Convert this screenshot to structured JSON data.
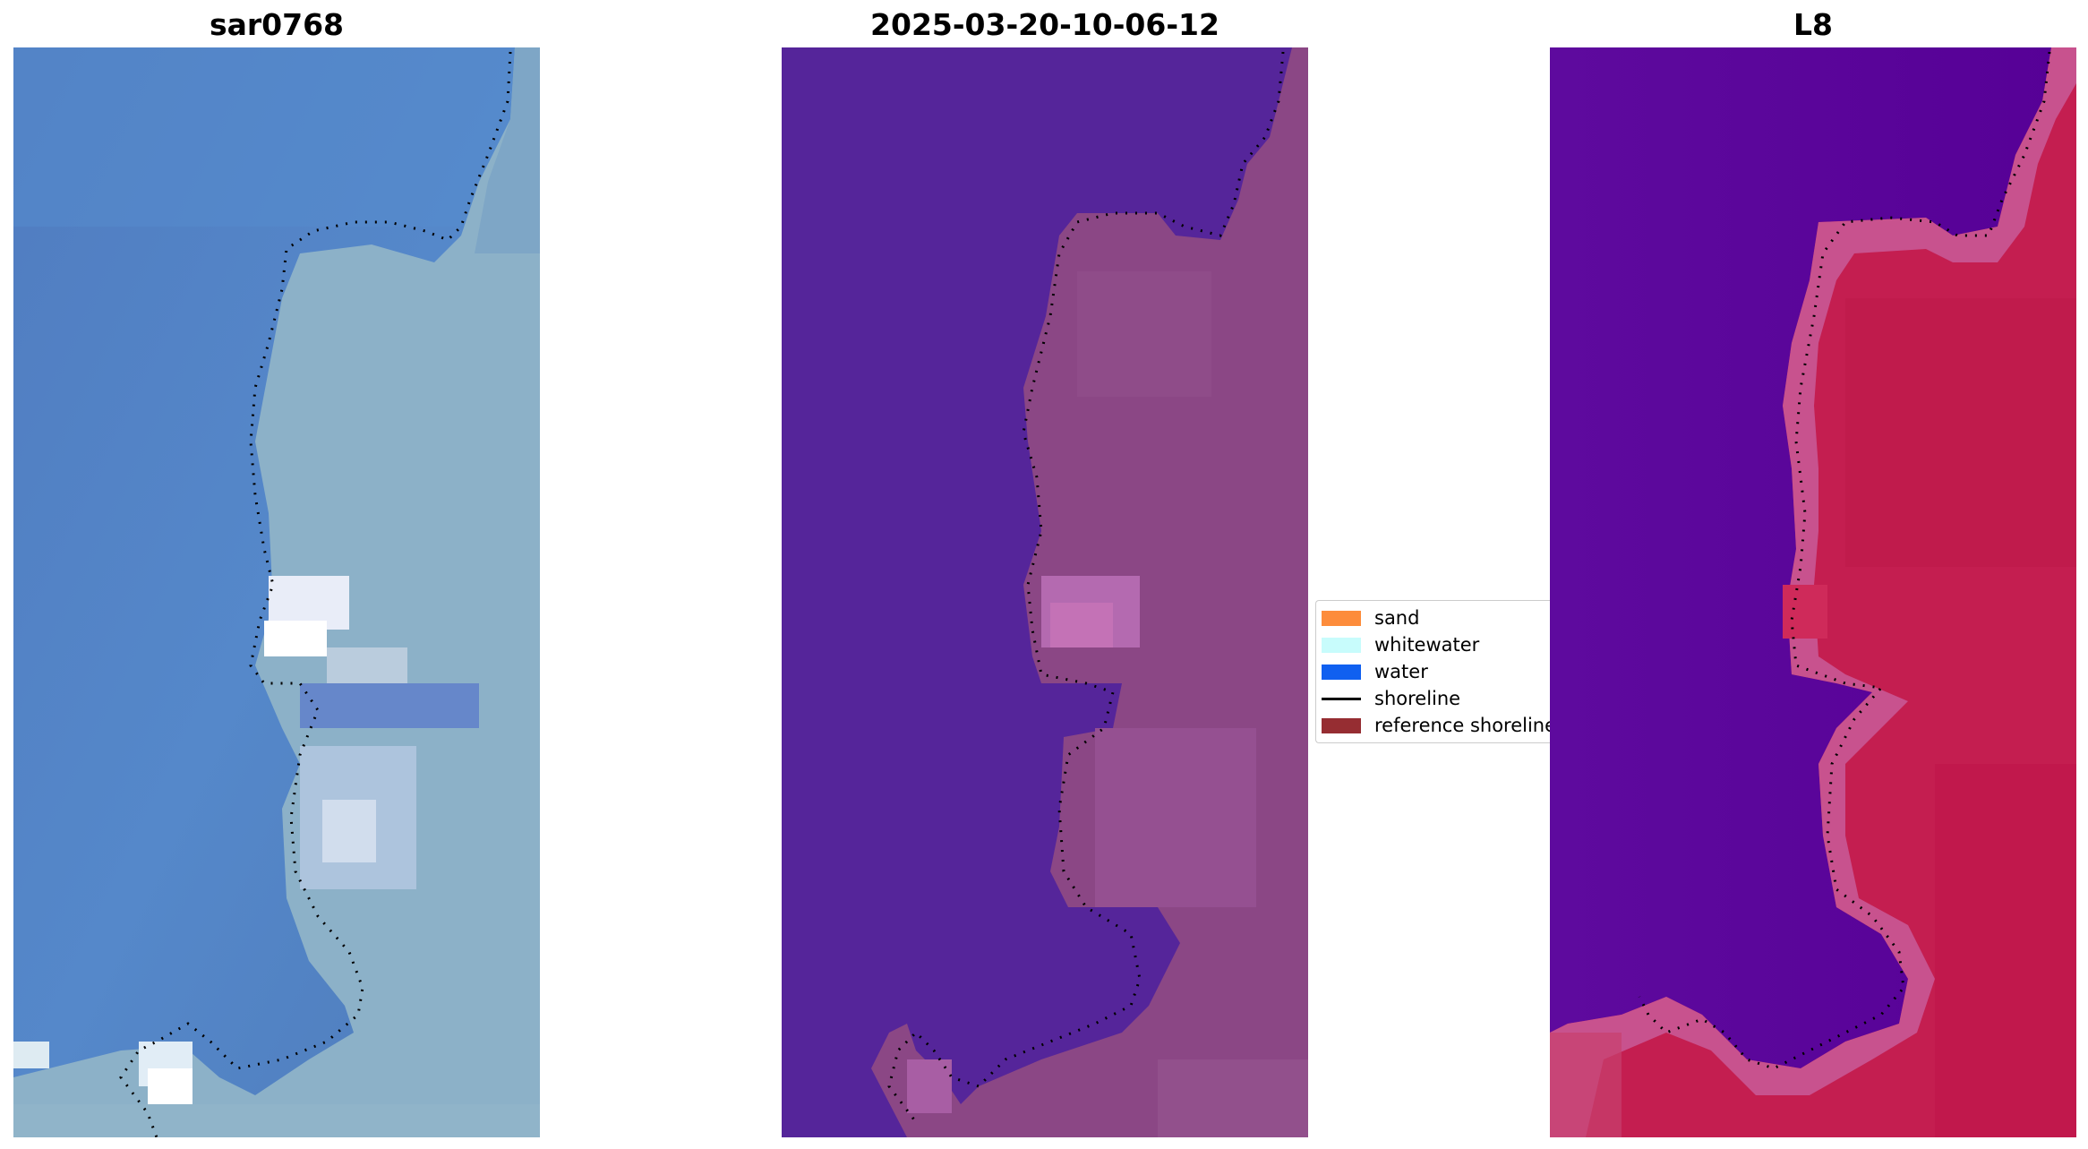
{
  "panels": {
    "left": {
      "title": "sar0768"
    },
    "middle": {
      "title": "2025-03-20-10-06-12"
    },
    "right": {
      "title": "L8"
    }
  },
  "legend": {
    "items": [
      {
        "label": "sand",
        "color": "#fd8c3b",
        "kind": "patch"
      },
      {
        "label": "whitewater",
        "color": "#c8fcfc",
        "kind": "patch"
      },
      {
        "label": "water",
        "color": "#1060f0",
        "kind": "patch"
      },
      {
        "label": "shoreline",
        "color": "#000000",
        "kind": "line"
      },
      {
        "label": "reference shoreline",
        "color": "#962d32",
        "kind": "patch"
      }
    ]
  },
  "colors": {
    "left_water": "#4e7fc2",
    "left_land": "#8fb4c8",
    "mid_water": "#55259a",
    "mid_land": "#8a4682",
    "right_water": "#5a0a9c",
    "right_land": "#c41e4e"
  }
}
